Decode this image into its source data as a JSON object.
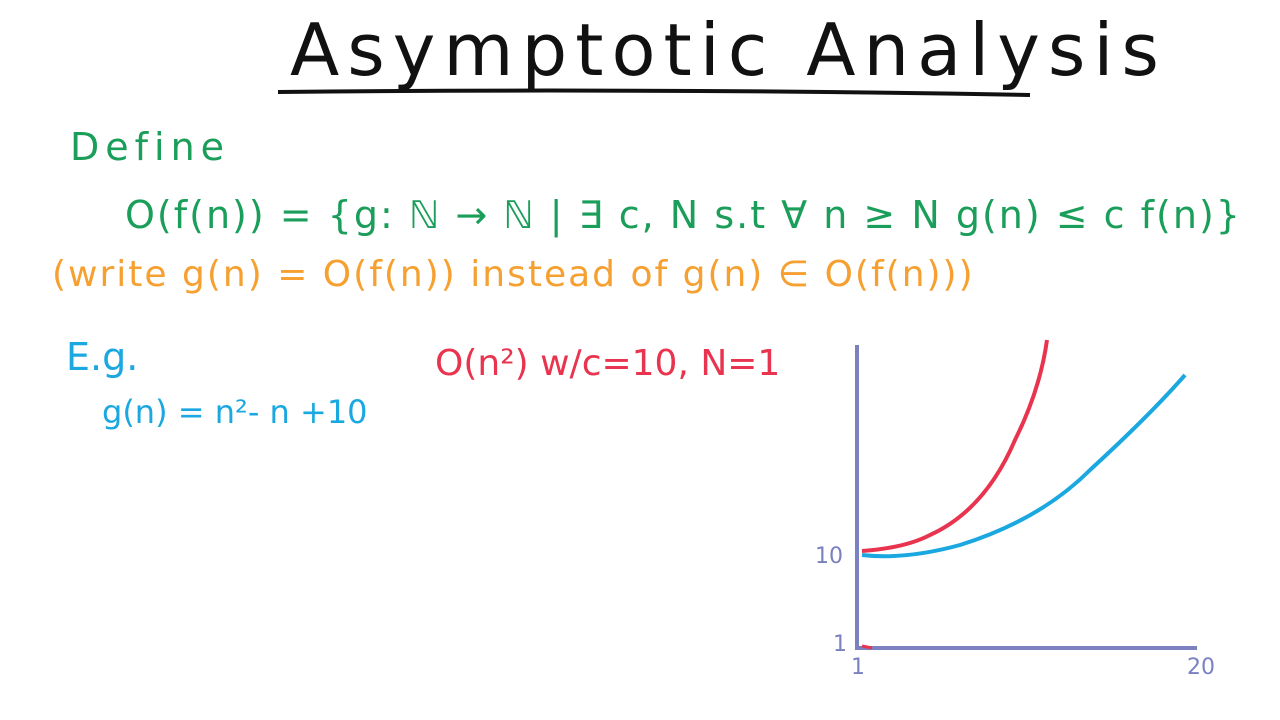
{
  "header": {
    "title": "Asymptotic Analysis"
  },
  "definition": {
    "label": "Define",
    "formula": "O(f(n)) = {g: ℕ → ℕ | ∃ c, N s.t  ∀ n ≥ N  g(n) ≤ c f(n)}",
    "note": "(write g(n) = O(f(n)) instead of g(n) ∈ O(f(n)))"
  },
  "example": {
    "label": "E.g.",
    "function": "g(n) = n²- n +10",
    "claim": "O(n²)  w/c=10, N=1"
  },
  "graph": {
    "y_labels": [
      "10",
      "1"
    ],
    "x_labels": [
      "1",
      "20"
    ]
  }
}
